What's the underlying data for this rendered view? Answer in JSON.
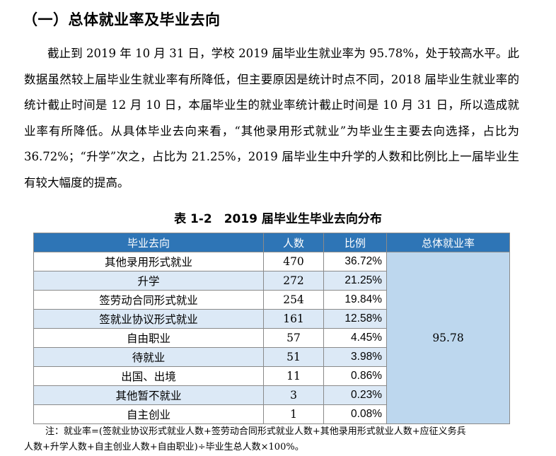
{
  "heading": "（一）总体就业率及毕业去向",
  "paragraph": "截止到 2019 年 10 月 31 日，学校 2019 届毕业生就业率为 95.78%，处于较高水平。此数据虽然较上届毕业生就业率有所降低，但主要原因是统计时点不同，2018 届毕业生就业率的统计截止时间是 12 月 10 日，本届毕业生的就业率统计截止时间是 10 月 31 日，所以造成就业率有所降低。从具体毕业去向来看，“其他录用形式就业”为毕业生主要去向选择，占比为 36.72%；“升学”次之，占比为 21.25%，2019 届毕业生中升学的人数和比例比上一届毕业生有较大幅度的提高。",
  "table": {
    "caption": "表 1-2　2019 届毕业生毕业去向分布",
    "headers": [
      "毕业去向",
      "人数",
      "比例",
      "总体就业率"
    ],
    "overall_rate": "95.78",
    "rows": [
      {
        "dest": "其他录用形式就业",
        "count": "470",
        "ratio": "36.72%"
      },
      {
        "dest": "升学",
        "count": "272",
        "ratio": "21.25%"
      },
      {
        "dest": "签劳动合同形式就业",
        "count": "254",
        "ratio": "19.84%"
      },
      {
        "dest": "签就业协议形式就业",
        "count": "161",
        "ratio": "12.58%"
      },
      {
        "dest": "自由职业",
        "count": "57",
        "ratio": "4.45%"
      },
      {
        "dest": "待就业",
        "count": "51",
        "ratio": "3.98%"
      },
      {
        "dest": "出国、出境",
        "count": "11",
        "ratio": "0.86%"
      },
      {
        "dest": "其他暂不就业",
        "count": "3",
        "ratio": "0.23%"
      },
      {
        "dest": "自主创业",
        "count": "1",
        "ratio": "0.08%"
      }
    ]
  },
  "note": {
    "line1": "注：就业率=(签就业协议形式就业人数+签劳动合同形式就业人数+其他录用形式就业人数+应征义务兵",
    "line2": "人数+升学人数+自主创业人数+自由职业)÷毕业生总人数×100%。"
  }
}
